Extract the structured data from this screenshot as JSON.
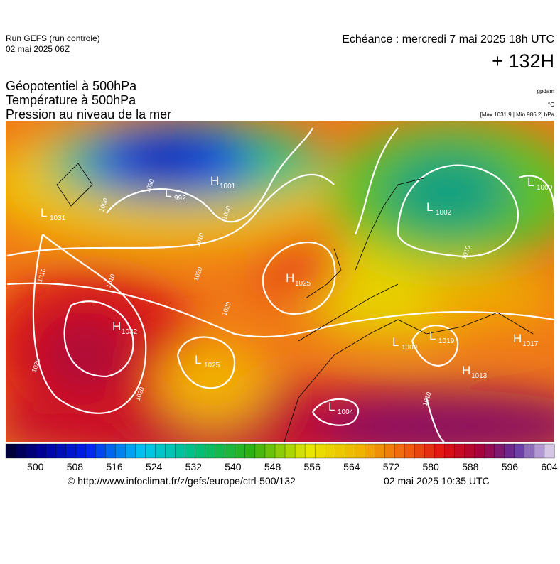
{
  "header": {
    "run": "Run GEFS (run controle)",
    "run_date": "02 mai 2025 06Z",
    "valid": "Echéance : mercredi 7 mai 2025 18h UTC",
    "lead": "+ 132H",
    "fields": [
      "Géopotentiel à 500hPa",
      "Température à 500hPa",
      "Pression au niveau de la mer"
    ],
    "unit_geo": "gpdam",
    "unit_temp": "°C",
    "extremes": "[Max 1031.9 | Min 986.2] hPa"
  },
  "pressure_centers": [
    {
      "kind": "L",
      "value": "992"
    },
    {
      "kind": "H",
      "value": "1001"
    },
    {
      "kind": "H",
      "value": "1032"
    },
    {
      "kind": "L",
      "value": "1025"
    },
    {
      "kind": "H",
      "value": "1025"
    },
    {
      "kind": "L",
      "value": "1004"
    },
    {
      "kind": "L",
      "value": "1009"
    },
    {
      "kind": "L",
      "value": "1019"
    },
    {
      "kind": "H",
      "value": "1013"
    },
    {
      "kind": "L",
      "value": "1000"
    },
    {
      "kind": "H",
      "value": "1017"
    },
    {
      "kind": "L",
      "value": "1002"
    },
    {
      "kind": "L",
      "value": "1031"
    }
  ],
  "isobar_labels": [
    "1020",
    "1020",
    "1010",
    "1010",
    "1020",
    "1000",
    "1010",
    "1010",
    "1010",
    "1000",
    "1020",
    "1030"
  ],
  "colorbar": {
    "lim": [
      494,
      605
    ],
    "ticks": [
      500,
      508,
      516,
      524,
      532,
      540,
      548,
      556,
      564,
      572,
      580,
      588,
      596,
      604
    ]
  },
  "footer": {
    "source": "© http://www.infoclimat.fr/z/gefs/europe/ctrl-500/132",
    "generated": "02 mai 2025 10:35 UTC"
  }
}
